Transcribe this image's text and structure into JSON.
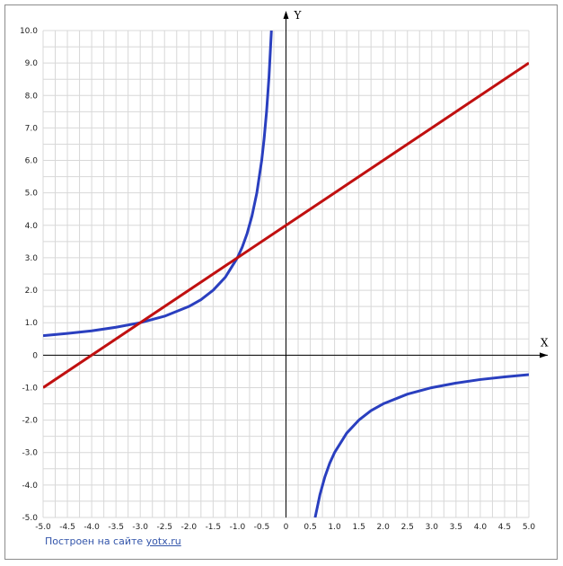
{
  "chart_data": {
    "type": "line",
    "title": "",
    "xlabel": "X",
    "ylabel": "Y",
    "xlim": [
      -5.0,
      5.0
    ],
    "ylim": [
      -5.0,
      10.0
    ],
    "grid": true,
    "x_ticks": [
      "-5.0",
      "-4.5",
      "-4.0",
      "-3.5",
      "-3.0",
      "-2.5",
      "-2.0",
      "-1.5",
      "-1.0",
      "-0.5",
      "0",
      "0.5",
      "1.0",
      "1.5",
      "2.0",
      "2.5",
      "3.0",
      "3.5",
      "4.0",
      "4.5",
      "5.0"
    ],
    "y_ticks": [
      "-5.0",
      "-4.0",
      "-3.0",
      "-2.0",
      "-1.0",
      "0",
      "1.0",
      "2.0",
      "3.0",
      "4.0",
      "5.0",
      "6.0",
      "7.0",
      "8.0",
      "9.0",
      "10.0"
    ],
    "series": [
      {
        "color": "#2a3fbf",
        "points_left": [
          [
            -5.0,
            0.6
          ],
          [
            -4.5,
            0.67
          ],
          [
            -4.0,
            0.75
          ],
          [
            -3.5,
            0.86
          ],
          [
            -3.0,
            1.0
          ],
          [
            -2.5,
            1.2
          ],
          [
            -2.0,
            1.5
          ],
          [
            -1.75,
            1.71
          ],
          [
            -1.5,
            2.0
          ],
          [
            -1.25,
            2.4
          ],
          [
            -1.0,
            3.0
          ],
          [
            -0.9,
            3.33
          ],
          [
            -0.8,
            3.75
          ],
          [
            -0.7,
            4.29
          ],
          [
            -0.6,
            5.0
          ],
          [
            -0.5,
            6.0
          ],
          [
            -0.45,
            6.67
          ],
          [
            -0.4,
            7.5
          ],
          [
            -0.35,
            8.57
          ],
          [
            -0.3,
            10.0
          ]
        ],
        "points_right": [
          [
            0.6,
            -5.0
          ],
          [
            0.7,
            -4.29
          ],
          [
            0.8,
            -3.75
          ],
          [
            0.9,
            -3.33
          ],
          [
            1.0,
            -3.0
          ],
          [
            1.25,
            -2.4
          ],
          [
            1.5,
            -2.0
          ],
          [
            1.75,
            -1.71
          ],
          [
            2.0,
            -1.5
          ],
          [
            2.5,
            -1.2
          ],
          [
            3.0,
            -1.0
          ],
          [
            3.5,
            -0.86
          ],
          [
            4.0,
            -0.75
          ],
          [
            4.5,
            -0.67
          ],
          [
            5.0,
            -0.6
          ]
        ]
      },
      {
        "color": "#c01010",
        "points": [
          [
            -5.0,
            -1.0
          ],
          [
            5.0,
            9.0
          ]
        ]
      }
    ]
  },
  "footer": {
    "credit_text": "Построен на сайте",
    "credit_link": "yotx.ru"
  }
}
